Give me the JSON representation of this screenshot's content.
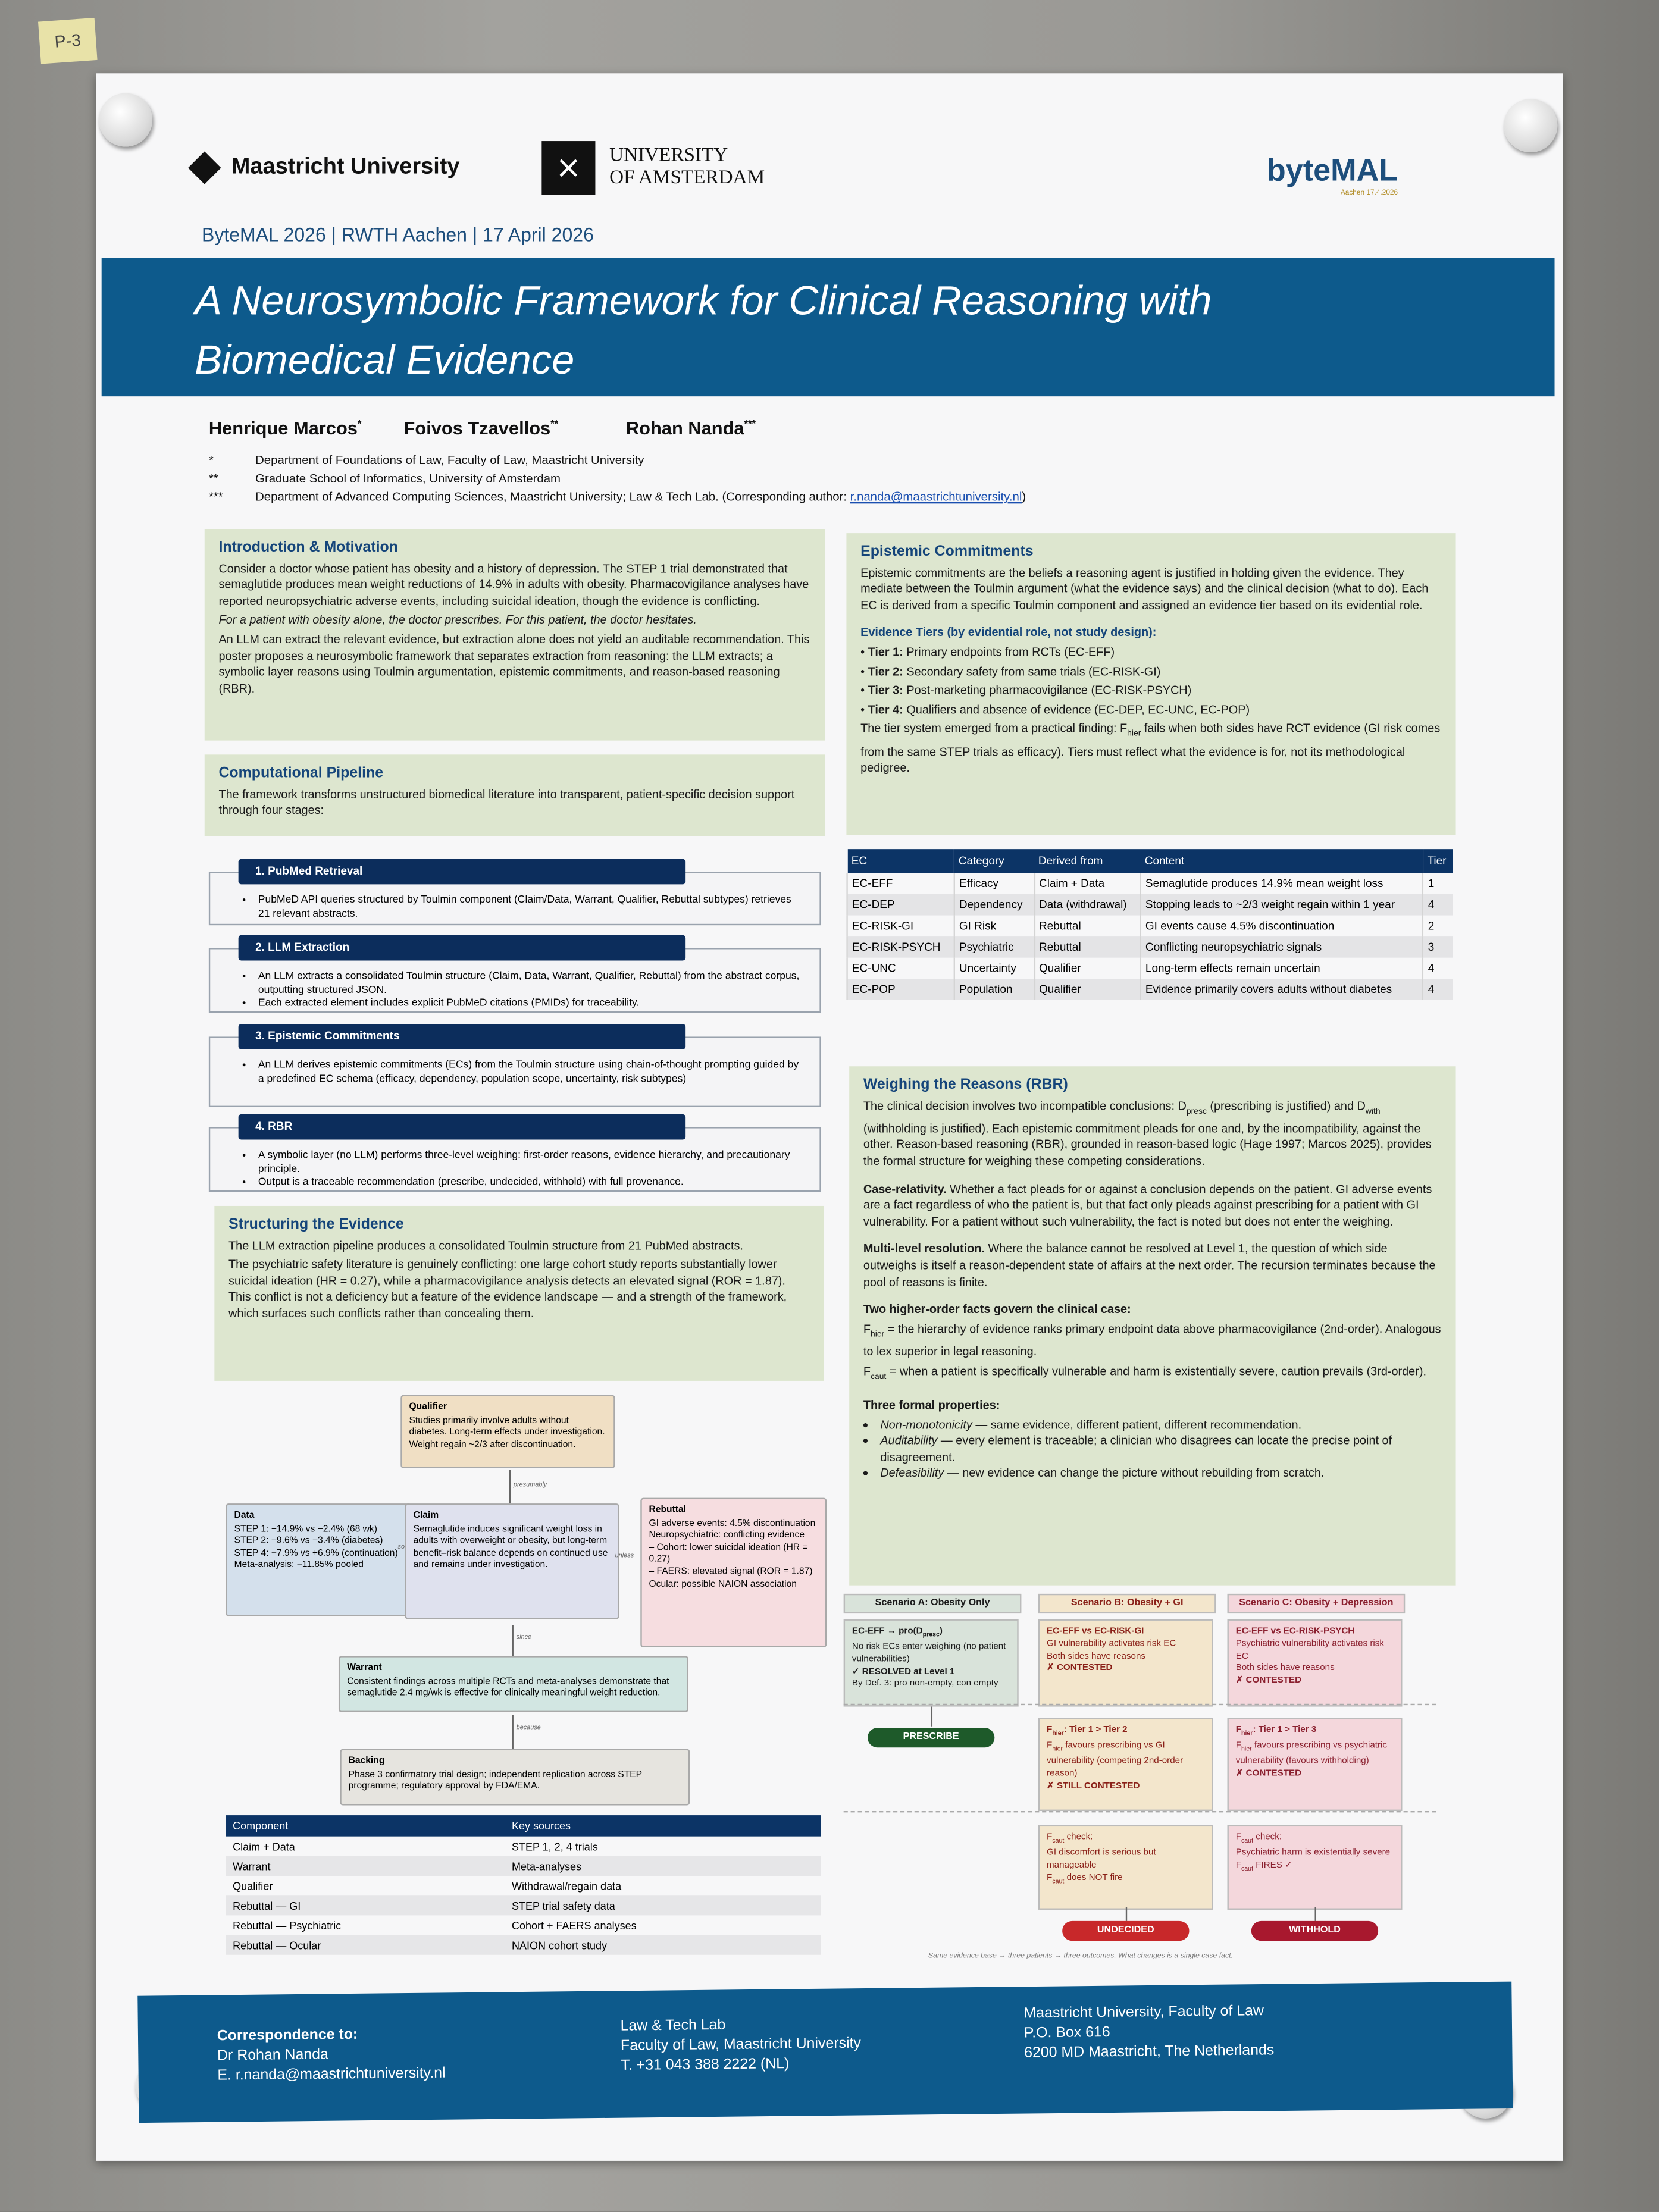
{
  "note": "P-3",
  "header": {
    "logo_mu": "Maastricht University",
    "logo_uva_line1": "UNIVERSITY",
    "logo_uva_line2": "OF AMSTERDAM",
    "logo_bytemal": "byteMAL",
    "logo_bytemal_sub": "Aachen 17.4.2026",
    "conference": "ByteMAL 2026 | RWTH Aachen | 17 April 2026"
  },
  "title": {
    "line1": "A Neurosymbolic Framework for Clinical Reasoning with",
    "line2": "Biomedical Evidence"
  },
  "authors": [
    {
      "name": "Henrique Marcos",
      "mark": "*"
    },
    {
      "name": "Foivos Tzavellos",
      "mark": "**"
    },
    {
      "name": "Rohan Nanda",
      "mark": "***"
    }
  ],
  "affiliations": [
    {
      "mark": "*",
      "text": "Department of Foundations of Law, Faculty of Law, Maastricht University"
    },
    {
      "mark": "**",
      "text": "Graduate School of Informatics, University of Amsterdam"
    },
    {
      "mark": "***",
      "text": "Department of Advanced Computing Sciences, Maastricht University; Law & Tech Lab. (Corresponding author: ",
      "link": "r.nanda@maastrichtuniversity.nl",
      "after": ")"
    }
  ],
  "intro": {
    "heading": "Introduction & Motivation",
    "p1": "Consider a doctor whose patient has obesity and a history of depression. The STEP 1 trial demonstrated that semaglutide produces mean weight reductions of 14.9% in adults with obesity. Pharmacovigilance analyses have reported neuropsychiatric adverse events, including suicidal ideation, though the evidence is conflicting.",
    "p2": "For a patient with obesity alone, the doctor prescribes. For this patient, the doctor hesitates.",
    "p3": "An LLM can extract the relevant evidence, but extraction alone does not yield an auditable recommendation. This poster proposes a neurosymbolic framework that separates extraction from reasoning: the LLM extracts; a symbolic layer reasons using Toulmin argumentation, epistemic commitments, and reason-based reasoning (RBR)."
  },
  "pipeline": {
    "heading": "Computational Pipeline",
    "intro": "The framework transforms unstructured biomedical literature into transparent, patient-specific decision support through four stages:",
    "stages": [
      {
        "title": "1. PubMed Retrieval",
        "bullets": [
          "PubMeD API queries structured by Toulmin component (Claim/Data, Warrant, Qualifier, Rebuttal subtypes)  retrieves 21 relevant abstracts."
        ]
      },
      {
        "title": "2. LLM Extraction",
        "bullets": [
          "An LLM extracts a consolidated Toulmin structure (Claim, Data, Warrant, Qualifier, Rebuttal) from the abstract corpus, outputting structured JSON.",
          "Each extracted element includes explicit PubMeD citations (PMIDs) for traceability."
        ]
      },
      {
        "title": "3. Epistemic Commitments",
        "bullets": [
          "An LLM derives epistemic commitments (ECs) from the Toulmin structure using chain-of-thought prompting guided by a predefined EC schema (efficacy, dependency, population scope, uncertainty, risk subtypes)"
        ]
      },
      {
        "title": "4. RBR",
        "bullets": [
          "A symbolic layer (no LLM) performs three-level weighing: first-order reasons, evidence hierarchy, and precautionary principle.",
          "Output is a traceable recommendation (prescribe, undecided, withhold) with full provenance."
        ]
      }
    ]
  },
  "structuring": {
    "heading": "Structuring the Evidence",
    "p1": "The LLM extraction pipeline produces a consolidated Toulmin structure from 21 PubMed abstracts.",
    "p2": "The psychiatric safety literature is genuinely conflicting: one large cohort study reports substantially lower suicidal ideation (HR = 0.27), while a pharmacovigilance analysis detects an elevated signal (ROR = 1.87). This conflict is not a deficiency but a feature of the evidence landscape — and a strength of the framework, which surfaces such conflicts rather than concealing them."
  },
  "toulmin": {
    "qualifier": {
      "title": "Qualifier",
      "text": "Studies primarily involve adults without diabetes. Long-term effects under investigation. Weight regain ~2/3 after discontinuation."
    },
    "data": {
      "title": "Data",
      "lines": [
        "STEP 1: −14.9% vs −2.4% (68 wk)",
        "STEP 2: −9.6% vs −3.4% (diabetes)",
        "STEP 4: −7.9% vs +6.9% (continuation)",
        "Meta-analysis: −11.85% pooled"
      ]
    },
    "claim": {
      "title": "Claim",
      "text": "Semaglutide induces significant weight loss in adults with overweight or obesity, but long-term benefit–risk balance depends on continued use and remains under investigation."
    },
    "rebuttal": {
      "title": "Rebuttal",
      "lines": [
        "GI adverse events: 4.5% discontinuation",
        "Neuropsychiatric: conflicting evidence",
        "– Cohort: lower suicidal ideation (HR = 0.27)",
        "– FAERS: elevated signal (ROR = 1.87)",
        "Ocular: possible NAION association"
      ]
    },
    "warrant": {
      "title": "Warrant",
      "text": "Consistent findings across multiple RCTs and meta-analyses demonstrate that semaglutide 2.4 mg/wk is effective for clinically meaningful weight reduction."
    },
    "backing": {
      "title": "Backing",
      "text": "Phase 3 confirmatory trial design; independent replication across STEP programme; regulatory approval by FDA/EMA."
    },
    "edges": {
      "presumably": "presumably",
      "so": "so",
      "unless": "unless",
      "since": "since",
      "because": "because"
    }
  },
  "components": {
    "headers": [
      "Component",
      "Key sources"
    ],
    "rows": [
      [
        "Claim + Data",
        "STEP 1, 2, 4 trials"
      ],
      [
        "Warrant",
        "Meta-analyses"
      ],
      [
        "Qualifier",
        "Withdrawal/regain data"
      ],
      [
        "Rebuttal — GI",
        "STEP trial safety data"
      ],
      [
        "Rebuttal — Psychiatric",
        "Cohort + FAERS analyses"
      ],
      [
        "Rebuttal — Ocular",
        "NAION cohort study"
      ]
    ]
  },
  "epistemic": {
    "heading": "Epistemic Commitments",
    "p1": "Epistemic commitments are the beliefs a reasoning agent is justified in holding given the evidence. They mediate between the Toulmin argument (what the evidence says) and the clinical decision (what to do). Each EC is derived from a specific Toulmin component and assigned an evidence tier based on its evidential role.",
    "tiers_heading": "Evidence Tiers (by evidential role, not study design):",
    "tiers": [
      {
        "label": "Tier 1:",
        "text": "Primary endpoints from RCTs (EC-EFF)"
      },
      {
        "label": "Tier 2:",
        "text": "Secondary safety from same trials (EC-RISK-GI)"
      },
      {
        "label": "Tier 3:",
        "text": "Post-marketing pharmacovigilance (EC-RISK-PSYCH)"
      },
      {
        "label": "Tier 4:",
        "text": "Qualifiers and absence of evidence (EC-DEP, EC-UNC, EC-POP)"
      }
    ],
    "p2a": "The tier system emerged from a practical finding: F",
    "p2sub": "hier",
    "p2b": " fails when both sides have RCT evidence (GI risk comes from the same STEP trials as efficacy). Tiers must reflect what the evidence is for, not its methodological pedigree."
  },
  "ec_table": {
    "headers": [
      "EC",
      "Category",
      "Derived from",
      "Content",
      "Tier"
    ],
    "rows": [
      [
        "EC-EFF",
        "Efficacy",
        "Claim + Data",
        "Semaglutide produces 14.9% mean weight loss",
        "1"
      ],
      [
        "EC-DEP",
        "Dependency",
        "Data (withdrawal)",
        "Stopping leads to ~2/3 weight regain within 1 year",
        "4"
      ],
      [
        "EC-RISK-GI",
        "GI Risk",
        "Rebuttal",
        "GI events cause 4.5% discontinuation",
        "2"
      ],
      [
        "EC-RISK-PSYCH",
        "Psychiatric",
        "Rebuttal",
        "Conflicting neuropsychiatric signals",
        "3"
      ],
      [
        "EC-UNC",
        "Uncertainty",
        "Qualifier",
        "Long-term effects remain uncertain",
        "4"
      ],
      [
        "EC-POP",
        "Population",
        "Qualifier",
        "Evidence primarily covers adults without diabetes",
        "4"
      ]
    ]
  },
  "weighing": {
    "heading": "Weighing the Reasons (RBR)",
    "p1": "The clinical decision involves two incompatible conclusions: D_presc (prescribing is justified) and D_with (withholding is justified). Each epistemic commitment pleads for one and, by the incompatibility, against the other. Reason-based reasoning (RBR), grounded in reason-based logic (Hage 1997; Marcos 2025), provides the formal structure for weighing these competing considerations.",
    "case_label": "Case-relativity.",
    "case_text": " Whether a fact pleads for or against a conclusion depends on the patient. GI adverse events are a fact regardless of who the patient is, but that fact only pleads against prescribing for a patient with GI vulnerability. For a patient without such vulnerability, the fact is noted but does not enter the weighing.",
    "multi_label": "Multi-level resolution.",
    "multi_text": " Where the balance cannot be resolved at Level 1, the question of which side outweighs is itself a reason-dependent state of affairs at the next order. The recursion terminates because the pool of reasons is finite.",
    "facts_heading": "Two higher-order facts govern the clinical case:",
    "fhier": "= the hierarchy of evidence ranks primary endpoint data above pharmacovigilance (2nd-order). Analogous to lex superior in legal reasoning.",
    "fcaut": "= when a patient is specifically vulnerable and harm is existentially severe, caution prevails (3rd-order).",
    "props_heading": "Three formal properties:",
    "props": [
      {
        "label": "Non-monotonicity",
        "text": " — same evidence, different patient, different recommendation."
      },
      {
        "label": "Auditability",
        "text": " — every element is traceable; a clinician who disagrees can locate the precise point of disagreement."
      },
      {
        "label": "Defeasibility",
        "text": " — new evidence can change the picture without rebuilding from scratch."
      }
    ]
  },
  "scenarios": {
    "A": {
      "title": "Scenario A: Obesity Only",
      "l1": [
        "EC-EFF → pro(D_presc)",
        "No risk ECs enter weighing (no patient vulnerabilities)",
        "✓ RESOLVED at Level 1",
        "By Def. 3: pro non-empty, con empty"
      ],
      "outcome": "PRESCRIBE"
    },
    "B": {
      "title": "Scenario B: Obesity + GI",
      "l1": [
        "EC-EFF vs EC-RISK-GI",
        "GI vulnerability activates risk EC",
        "Both sides have reasons",
        "✗ CONTESTED"
      ],
      "l2": [
        "F_hier: Tier 1 > Tier 2",
        "F_hier favours prescribing vs GI vulnerability (competing 2nd-order reason)",
        "✗ STILL CONTESTED"
      ],
      "l3": [
        "F_caut check:",
        "GI discomfort is serious but manageable",
        "F_caut does NOT fire"
      ],
      "outcome": "UNDECIDED"
    },
    "C": {
      "title": "Scenario C: Obesity + Depression",
      "l1": [
        "EC-EFF vs EC-RISK-PSYCH",
        "Psychiatric vulnerability activates risk EC",
        "Both sides have reasons",
        "✗ CONTESTED"
      ],
      "l2": [
        "F_hier: Tier 1 > Tier 3",
        "F_hier favours prescribing vs psychiatric vulnerability (favours withholding)",
        "✗ CONTESTED"
      ],
      "l3": [
        "F_caut check:",
        "Psychiatric harm is existentially severe",
        "F_caut FIRES ✓"
      ],
      "outcome": "WITHHOLD"
    },
    "caption": "Same evidence base → three patients → three outcomes. What changes is a single case fact.",
    "colors": {
      "prescribe": "#1e5a2a",
      "undecided": "#c8282a",
      "withhold": "#a8182e"
    }
  },
  "footer": {
    "c1": [
      "Correspondence to:",
      "Dr Rohan Nanda",
      "E. r.nanda@maastrichtuniversity.nl"
    ],
    "c2": [
      "Law & Tech Lab",
      "Faculty of Law, Maastricht University",
      "T.  +31 043 388 2222 (NL)"
    ],
    "c3": [
      "Maastricht University, Faculty of Law",
      "P.O. Box 616",
      "6200 MD  Maastricht, The Netherlands"
    ]
  },
  "colors": {
    "banner": "#0d5a8c",
    "box": "#dde6cf",
    "navy": "#0c2d5c"
  }
}
